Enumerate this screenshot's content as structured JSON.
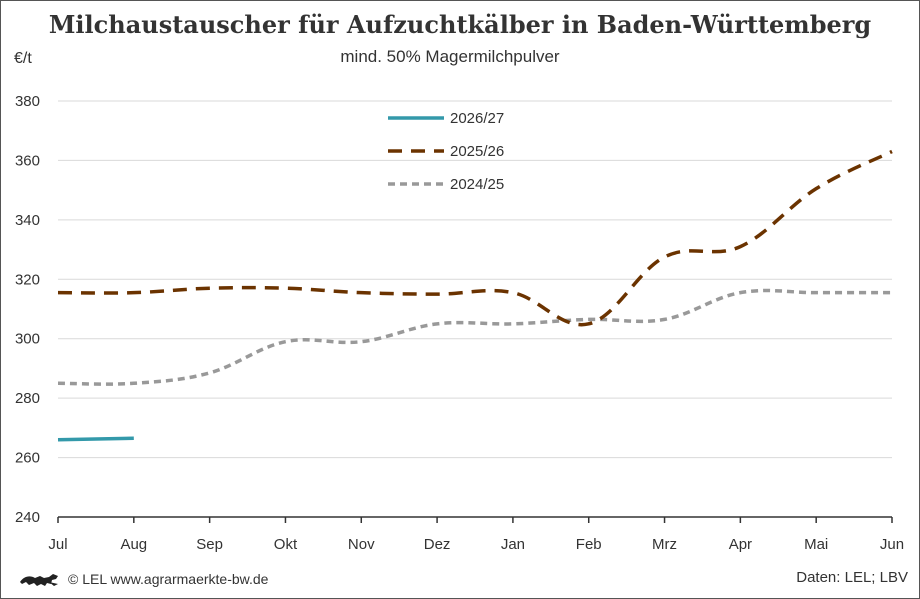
{
  "title": "Milchaustauscher für Aufzuchtkälber in Baden-Württemberg",
  "subtitle": "mind. 50% Magermilchpulver",
  "footer": {
    "copyright": "© LEL www.agrarmaerkte-bw.de",
    "source": "Daten: LEL; LBV",
    "logo_icon": "lion-logo-icon"
  },
  "chart_data": {
    "type": "line",
    "ylabel": "€/t",
    "ylim": [
      240,
      380
    ],
    "yticks": [
      240,
      260,
      280,
      300,
      320,
      340,
      360,
      380
    ],
    "grid": "horizontal",
    "legend_position": "top-center",
    "categories": [
      "Jul",
      "Aug",
      "Sep",
      "Okt",
      "Nov",
      "Dez",
      "Jan",
      "Feb",
      "Mrz",
      "Apr",
      "Mai",
      "Jun"
    ],
    "series": [
      {
        "name": "2026/27",
        "color": "#3399aa",
        "style": "solid",
        "values": [
          266,
          266.5,
          null,
          null,
          null,
          null,
          null,
          null,
          null,
          null,
          null,
          null
        ]
      },
      {
        "name": "2025/26",
        "color": "#6b3300",
        "style": "dashed",
        "values": [
          315.5,
          315.5,
          317,
          317,
          315.5,
          315,
          315.5,
          305,
          327.5,
          331,
          350.5,
          363
        ]
      },
      {
        "name": "2024/25",
        "color": "#999999",
        "style": "dotted",
        "values": [
          285,
          285,
          288.5,
          299,
          299,
          305,
          305,
          306.5,
          306.5,
          315.5,
          315.5,
          315.5
        ]
      }
    ]
  }
}
